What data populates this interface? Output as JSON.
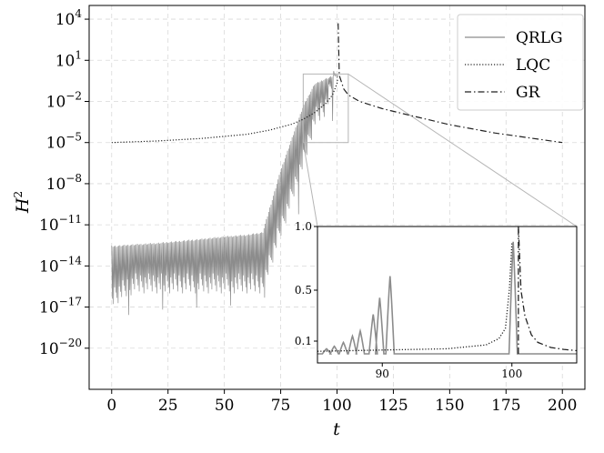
{
  "chart_data": [
    {
      "type": "line",
      "xlabel": "t",
      "ylabel": "H²",
      "xlim": [
        -10,
        210
      ],
      "yscale": "log",
      "ylim": [
        1e-23,
        100000.0
      ],
      "x_ticks": [
        0,
        25,
        50,
        75,
        100,
        125,
        150,
        175,
        200
      ],
      "y_ticks": [
        {
          "value": 1e-20,
          "base": "10",
          "exp": "−20"
        },
        {
          "value": 1e-17,
          "base": "10",
          "exp": "−17"
        },
        {
          "value": 1e-14,
          "base": "10",
          "exp": "−14"
        },
        {
          "value": 1e-11,
          "base": "10",
          "exp": "−11"
        },
        {
          "value": 1e-08,
          "base": "10",
          "exp": "−8"
        },
        {
          "value": 1e-05,
          "base": "10",
          "exp": "−5"
        },
        {
          "value": 0.01,
          "base": "10",
          "exp": "−2"
        },
        {
          "value": 10,
          "base": "10",
          "exp": "1"
        },
        {
          "value": 10000,
          "base": "10",
          "exp": "4"
        }
      ],
      "grid": true,
      "legend_position": "top-right",
      "series": [
        {
          "name": "QRLG",
          "style": "solid",
          "color": "#8c8c8c",
          "description_points": {
            "x": [
              0,
              10,
              20,
              30,
              40,
              50,
              60,
              67,
              75,
              85,
              90,
              95,
              100,
              101
            ],
            "y_upper": [
              3e-13,
              4e-13,
              5e-13,
              7e-13,
              1e-12,
              1.5e-12,
              2e-12,
              3e-12,
              1e-07,
              0.005,
              0.2,
              0.5,
              1.0,
              0.8
            ],
            "y_lower": [
              1e-17,
              1e-16,
              1e-16,
              1e-16,
              1e-16,
              1e-16,
              1e-16,
              1e-16,
              1e-12,
              1e-07,
              0.0001,
              0.001,
              0.5,
              0.5
            ]
          }
        },
        {
          "name": "LQC",
          "style": "dotted",
          "color": "#222222",
          "x": [
            0,
            20,
            40,
            60,
            70,
            80,
            85,
            90,
            95,
            98,
            100,
            100.3
          ],
          "y": [
            1e-05,
            1.3e-05,
            2e-05,
            4e-05,
            8e-05,
            0.00022,
            0.0005,
            0.0015,
            0.007,
            0.03,
            0.2,
            0.5
          ]
        },
        {
          "name": "GR",
          "style": "dashdot",
          "color": "#222222",
          "x": [
            100.5,
            101,
            103,
            105,
            110,
            120,
            130,
            150,
            170,
            200
          ],
          "y": [
            5000,
            0.8,
            0.08,
            0.03,
            0.01,
            0.003,
            0.0012,
            0.0002,
            5e-05,
            1e-05
          ]
        }
      ],
      "zoom_box": {
        "x": [
          85,
          105
        ],
        "y": [
          1e-05,
          1.0
        ]
      }
    },
    {
      "type": "line",
      "role": "inset",
      "xlim": [
        85,
        105
      ],
      "ylim": [
        0.0,
        1.0
      ],
      "x_ticks": [
        90,
        100
      ],
      "y_ticks": [
        0.1,
        0.5,
        1.0
      ],
      "series": [
        {
          "name": "QRLG",
          "style": "solid",
          "color": "#8c8c8c",
          "peaks_x": [
            85.7,
            86.3,
            87,
            87.7,
            88.3,
            89.3,
            89.8,
            90.6,
            100.1
          ],
          "peaks_y": [
            0.04,
            0.06,
            0.09,
            0.14,
            0.18,
            0.31,
            0.44,
            0.61,
            0.88
          ]
        },
        {
          "name": "LQC",
          "style": "dotted",
          "color": "#222222",
          "x": [
            85,
            90,
            95,
            98,
            99,
            99.5,
            99.8,
            100
          ],
          "y": [
            0.02,
            0.03,
            0.04,
            0.07,
            0.12,
            0.2,
            0.5,
            0.87
          ]
        },
        {
          "name": "GR",
          "style": "dashdot",
          "color": "#222222",
          "x": [
            100.5,
            100.7,
            101,
            101.5,
            102,
            103,
            104,
            105
          ],
          "y": [
            1.0,
            0.5,
            0.3,
            0.15,
            0.09,
            0.05,
            0.035,
            0.025
          ]
        }
      ]
    }
  ]
}
